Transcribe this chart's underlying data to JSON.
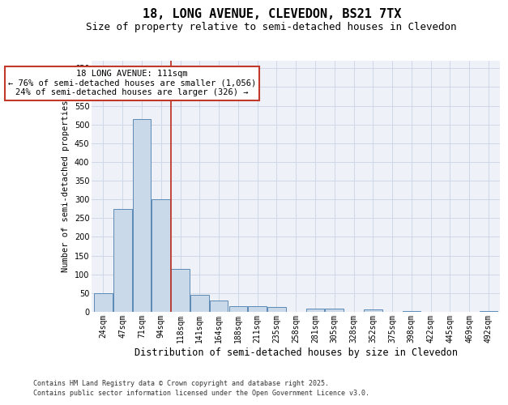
{
  "title": "18, LONG AVENUE, CLEVEDON, BS21 7TX",
  "subtitle": "Size of property relative to semi-detached houses in Clevedon",
  "xlabel": "Distribution of semi-detached houses by size in Clevedon",
  "ylabel": "Number of semi-detached properties",
  "annotation_title": "18 LONG AVENUE: 111sqm",
  "annotation_line1": "← 76% of semi-detached houses are smaller (1,056)",
  "annotation_line2": "24% of semi-detached houses are larger (326) →",
  "footnote1": "Contains HM Land Registry data © Crown copyright and database right 2025.",
  "footnote2": "Contains public sector information licensed under the Open Government Licence v3.0.",
  "bar_color": "#c9d9ea",
  "bar_edge_color": "#5a8ab5",
  "vline_color": "#c0392b",
  "annotation_box_edge_color": "#c0392b",
  "grid_color": "#d0d8e8",
  "bg_color": "#eef2f8",
  "categories": [
    "24sqm",
    "47sqm",
    "71sqm",
    "94sqm",
    "118sqm",
    "141sqm",
    "164sqm",
    "188sqm",
    "211sqm",
    "235sqm",
    "258sqm",
    "281sqm",
    "305sqm",
    "328sqm",
    "352sqm",
    "375sqm",
    "398sqm",
    "422sqm",
    "445sqm",
    "469sqm",
    "492sqm"
  ],
  "values": [
    50,
    275,
    515,
    300,
    115,
    45,
    30,
    15,
    15,
    13,
    0,
    8,
    8,
    0,
    7,
    0,
    3,
    0,
    0,
    0,
    3
  ],
  "ylim": [
    0,
    670
  ],
  "yticks": [
    0,
    50,
    100,
    150,
    200,
    250,
    300,
    350,
    400,
    450,
    500,
    550,
    600,
    650
  ],
  "vline_x_index": 3.5,
  "title_fontsize": 11,
  "subtitle_fontsize": 9,
  "xlabel_fontsize": 8.5,
  "ylabel_fontsize": 7.5,
  "tick_fontsize": 7,
  "annotation_fontsize": 7.5,
  "footnote_fontsize": 6
}
